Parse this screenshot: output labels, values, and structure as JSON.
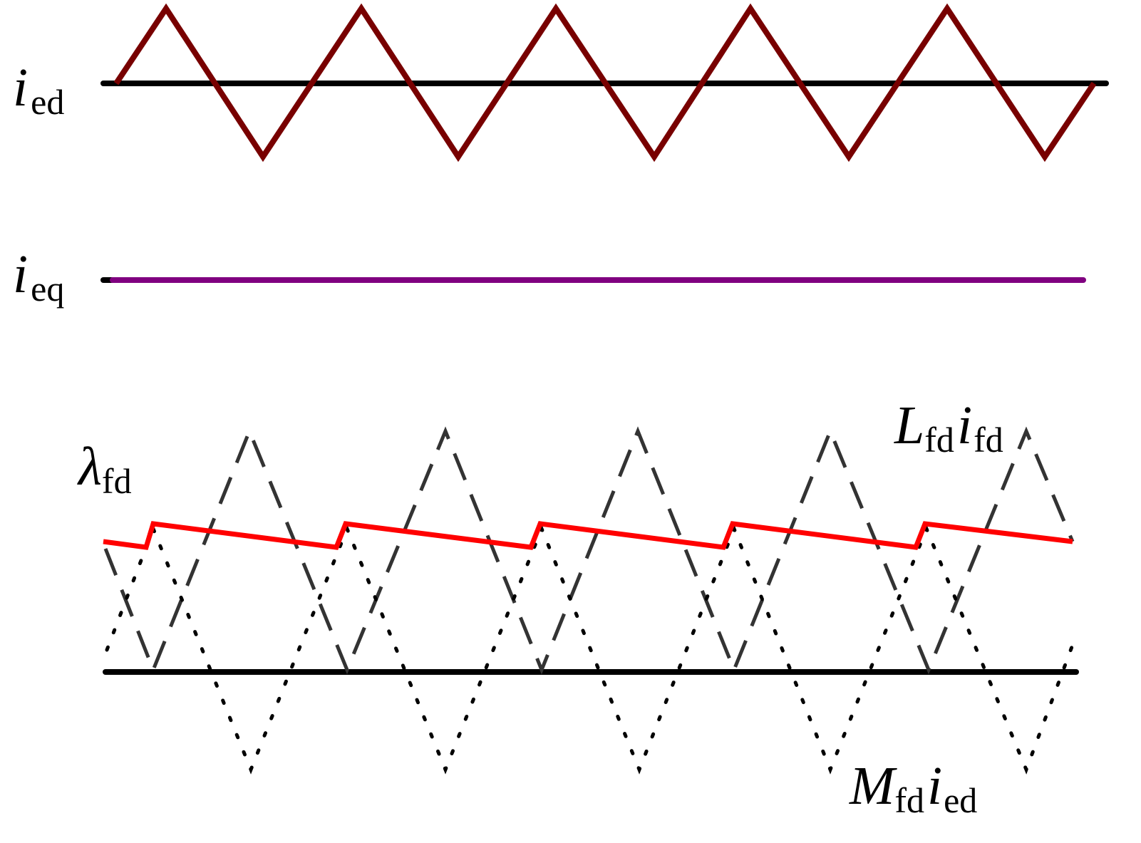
{
  "labels": [
    [
      {
        "symbol": "i",
        "subscript": "ed"
      }
    ],
    [
      {
        "symbol": "i",
        "subscript": "eq"
      }
    ],
    [
      {
        "symbol": "λ",
        "subscript": "fd"
      }
    ],
    [
      {
        "symbol": "L",
        "subscript": "fd"
      },
      {
        "symbol": "i",
        "subscript": "fd"
      }
    ],
    [
      {
        "symbol": "M",
        "subscript": "fd"
      },
      {
        "symbol": "i",
        "subscript": "ed"
      }
    ]
  ]
}
